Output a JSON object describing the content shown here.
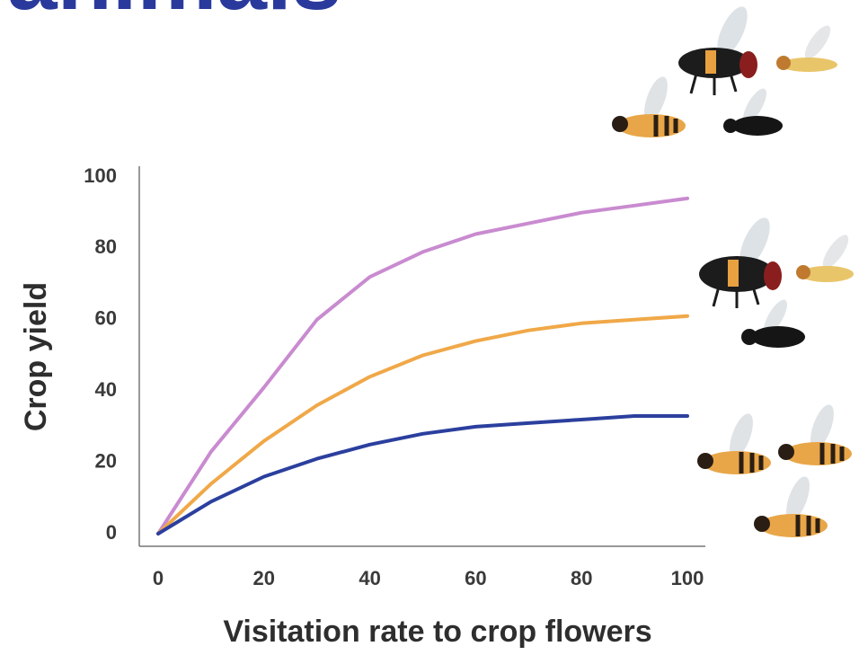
{
  "chart_data": {
    "type": "line",
    "title": "animals",
    "xlabel": "Visitation rate to crop flowers",
    "ylabel": "Crop yield",
    "x": [
      0,
      10,
      20,
      30,
      40,
      50,
      60,
      70,
      80,
      90,
      100
    ],
    "series": [
      {
        "color": "#c98bd0",
        "values": [
          0,
          23,
          41,
          60,
          72,
          79,
          84,
          87,
          90,
          92,
          94
        ]
      },
      {
        "color": "#f0a848",
        "values": [
          0,
          14,
          26,
          36,
          44,
          50,
          54,
          57,
          59,
          60,
          61
        ]
      },
      {
        "color": "#2b3f9e",
        "values": [
          0,
          9,
          16,
          21,
          25,
          28,
          30,
          31,
          32,
          33,
          33
        ]
      }
    ],
    "xlim": [
      0,
      100
    ],
    "xticks": [
      0,
      20,
      40,
      60,
      80,
      100
    ],
    "ylim": [
      0,
      100
    ],
    "yticks": [
      0,
      20,
      40,
      60,
      80,
      100
    ],
    "grid": false
  }
}
